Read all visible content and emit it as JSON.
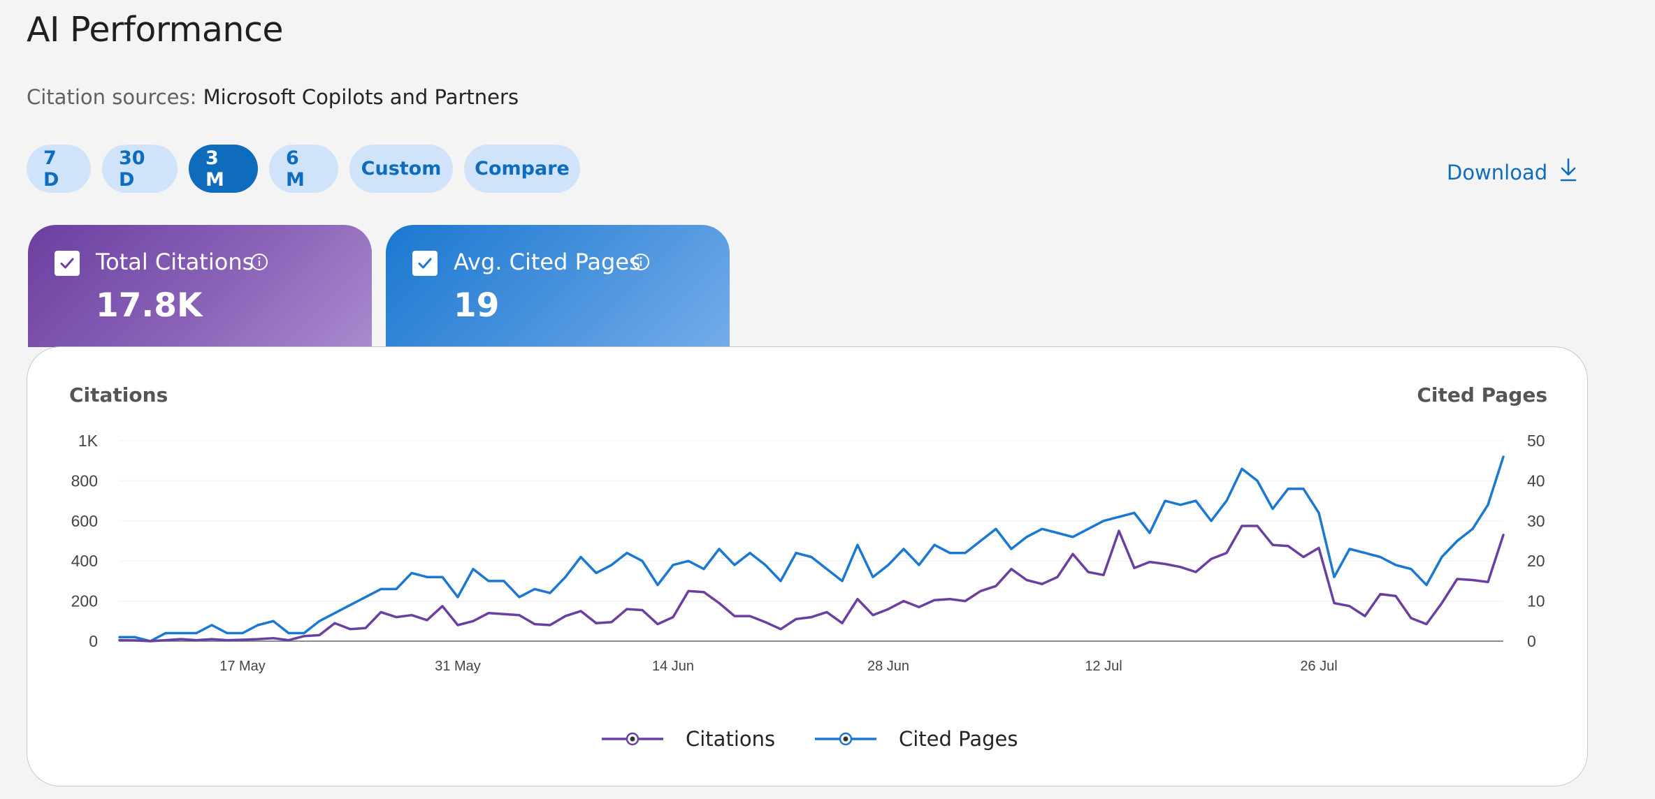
{
  "page": {
    "title": "AI Performance"
  },
  "citation_sources": {
    "label": "Citation sources:",
    "value": "Microsoft Copilots and Partners"
  },
  "ranges": [
    {
      "label": "7 D",
      "active": false
    },
    {
      "label": "30 D",
      "active": false
    },
    {
      "label": "3 M",
      "active": true
    },
    {
      "label": "6 M",
      "active": false
    },
    {
      "label": "Custom",
      "active": false
    },
    {
      "label": "Compare",
      "active": false
    }
  ],
  "download": {
    "label": "Download",
    "icon": "download-icon"
  },
  "metrics": [
    {
      "label": "Total Citations",
      "value": "17.8K",
      "checked": true,
      "icon": "info-icon",
      "color": "#6b3fa0"
    },
    {
      "label": "Avg. Cited Pages",
      "value": "19",
      "checked": true,
      "icon": "info-icon",
      "color": "#1a78d0"
    }
  ],
  "chart_data": {
    "type": "line",
    "y_left_title": "Citations",
    "y_right_title": "Cited Pages",
    "y_left_ticks": [
      "0",
      "200",
      "400",
      "600",
      "800",
      "1K"
    ],
    "y_left_range": [
      0,
      1000
    ],
    "y_right_ticks": [
      "0",
      "10",
      "20",
      "30",
      "40",
      "50"
    ],
    "y_right_range": [
      0,
      50
    ],
    "x_tick_labels": [
      "17 May",
      "31 May",
      "14 Jun",
      "28 Jun",
      "12 Jul",
      "26 Jul"
    ],
    "x_tick_indices": [
      8,
      22,
      36,
      50,
      64,
      78
    ],
    "grid": true,
    "legend_position": "bottom",
    "series": [
      {
        "name": "Citations",
        "axis": "left",
        "color": "#6b3fa0",
        "values": [
          5,
          4,
          0,
          5,
          10,
          5,
          10,
          5,
          7,
          10,
          15,
          5,
          25,
          30,
          90,
          60,
          65,
          145,
          120,
          130,
          105,
          175,
          80,
          100,
          140,
          135,
          130,
          85,
          80,
          125,
          150,
          90,
          95,
          160,
          155,
          85,
          120,
          250,
          245,
          190,
          125,
          125,
          95,
          60,
          110,
          120,
          145,
          90,
          210,
          130,
          160,
          200,
          170,
          205,
          210,
          200,
          250,
          275,
          360,
          305,
          285,
          320,
          435,
          345,
          330,
          550,
          365,
          395,
          385,
          370,
          345,
          410,
          440,
          575,
          575,
          480,
          475,
          420,
          465,
          190,
          175,
          125,
          235,
          225,
          115,
          85,
          190,
          310,
          305,
          295,
          530
        ]
      },
      {
        "name": "Cited Pages",
        "axis": "right",
        "color": "#1a78d0",
        "values": [
          1,
          1,
          0,
          2,
          2,
          2,
          4,
          2,
          2,
          4,
          5,
          2,
          2,
          5,
          7,
          9,
          11,
          13,
          13,
          17,
          16,
          16,
          11,
          18,
          15,
          15,
          11,
          13,
          12,
          16,
          21,
          17,
          19,
          22,
          20,
          14,
          19,
          20,
          18,
          23,
          19,
          22,
          19,
          15,
          22,
          21,
          18,
          15,
          24,
          16,
          19,
          23,
          19,
          24,
          22,
          22,
          25,
          28,
          23,
          26,
          28,
          27,
          26,
          28,
          30,
          31,
          32,
          27,
          35,
          34,
          35,
          30,
          35,
          43,
          40,
          33,
          38,
          38,
          32,
          16,
          23,
          22,
          21,
          19,
          18,
          14,
          21,
          25,
          28,
          34,
          46
        ]
      }
    ]
  }
}
